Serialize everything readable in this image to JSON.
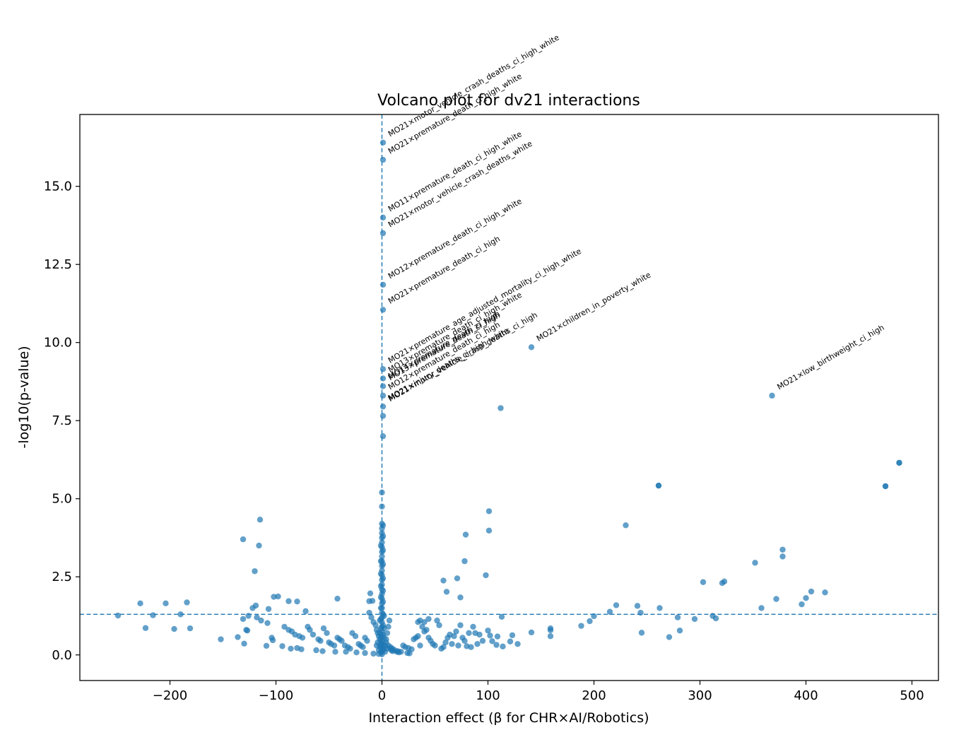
{
  "chart_data": {
    "type": "scatter",
    "title": "Volcano plot for dv21 interactions",
    "xlabel": "Interaction effect (β for CHR×AI/Robotics)",
    "ylabel": "-log10(p-value)",
    "xlim": [
      -285,
      525
    ],
    "ylim": [
      -0.82,
      17.3
    ],
    "xticks": [
      -200,
      -100,
      0,
      100,
      200,
      300,
      400,
      500
    ],
    "xtick_labels": [
      "−200",
      "−100",
      "0",
      "100",
      "200",
      "300",
      "400",
      "500"
    ],
    "yticks": [
      0,
      2.5,
      5,
      7.5,
      10,
      12.5,
      15
    ],
    "ytick_labels": [
      "0.0",
      "2.5",
      "5.0",
      "7.5",
      "10.0",
      "12.5",
      "15.0"
    ],
    "grid": false,
    "point_color": "#1f77b4",
    "ref_lines": {
      "vertical_x": 0,
      "horizontal_y": 1.3
    },
    "highlight_points": [
      [
        1,
        16.4
      ],
      [
        1,
        15.85
      ],
      [
        1,
        14.0
      ],
      [
        1,
        13.5
      ],
      [
        1,
        11.85
      ],
      [
        1,
        11.05
      ],
      [
        1,
        9.15
      ],
      [
        1,
        8.85
      ],
      [
        1,
        8.6
      ],
      [
        1,
        8.3
      ],
      [
        1,
        7.95
      ],
      [
        141,
        9.85
      ],
      [
        368,
        8.3
      ],
      [
        1,
        7.65
      ],
      [
        1,
        7.0
      ],
      [
        112,
        7.9
      ],
      [
        488,
        6.15
      ],
      [
        475,
        5.4
      ],
      [
        261,
        5.42
      ]
    ],
    "annotations": [
      {
        "text": "MO21×motor_vehicle_crash_deaths_ci_high_white",
        "x": 1,
        "y": 16.4
      },
      {
        "text": "MO21×premature_death_ci_high_white",
        "x": 1,
        "y": 15.85
      },
      {
        "text": "MO11×premature_death_ci_high_white",
        "x": 1,
        "y": 14.0
      },
      {
        "text": "MO21×motor_vehicle_crash_deaths_white",
        "x": 1,
        "y": 13.5
      },
      {
        "text": "MO12×premature_death_ci_high_white",
        "x": 1,
        "y": 11.85
      },
      {
        "text": "MO21×premature_death_ci_high",
        "x": 1,
        "y": 11.05
      },
      {
        "text": "MO21×premature_age_adjusted_mortality_ci_high_white",
        "x": 1,
        "y": 9.15
      },
      {
        "text": "MO13×premature_death_ci_high_white",
        "x": 1,
        "y": 8.85
      },
      {
        "text": "MO14×premature_death_ci_high",
        "x": 1,
        "y": 8.65
      },
      {
        "text": "MO13×premature_death_ci_high",
        "x": 1,
        "y": 8.6
      },
      {
        "text": "MO12×premature_death_ci_high",
        "x": 1,
        "y": 8.3
      },
      {
        "text": "MO21×injury_deaths_ci_high_white",
        "x": 1,
        "y": 7.95
      },
      {
        "text": "MO21×motor_vehicle_crash_deaths_ci_high",
        "x": 1,
        "y": 7.92
      },
      {
        "text": "MO21×children_in_poverty_white",
        "x": 141,
        "y": 9.85
      },
      {
        "text": "MO21×low_birthweight_ci_high",
        "x": 368,
        "y": 8.3
      }
    ],
    "other_points": [
      [
        488,
        6.15
      ],
      [
        475,
        5.4
      ],
      [
        261,
        5.42
      ],
      [
        230,
        4.15
      ],
      [
        101,
        4.6
      ],
      [
        101,
        3.98
      ],
      [
        79,
        3.85
      ],
      [
        78,
        3.0
      ],
      [
        98,
        2.55
      ],
      [
        71,
        2.45
      ],
      [
        58,
        2.38
      ],
      [
        61,
        2.02
      ],
      [
        74,
        1.84
      ],
      [
        378,
        3.37
      ],
      [
        378,
        3.15
      ],
      [
        352,
        2.95
      ],
      [
        323,
        2.35
      ],
      [
        321,
        2.3
      ],
      [
        303,
        2.33
      ],
      [
        405,
        2.03
      ],
      [
        418,
        2.0
      ],
      [
        400,
        1.82
      ],
      [
        396,
        1.62
      ],
      [
        372,
        1.79
      ],
      [
        358,
        1.5
      ],
      [
        262,
        1.5
      ],
      [
        241,
        1.57
      ],
      [
        221,
        1.59
      ],
      [
        215,
        1.38
      ],
      [
        200,
        1.24
      ],
      [
        196,
        1.08
      ],
      [
        188,
        0.93
      ],
      [
        244,
        1.35
      ],
      [
        279,
        1.2
      ],
      [
        295,
        1.15
      ],
      [
        312,
        1.25
      ],
      [
        315,
        1.17
      ],
      [
        245,
        0.71
      ],
      [
        271,
        0.57
      ],
      [
        281,
        0.78
      ],
      [
        159,
        0.85
      ],
      [
        159,
        0.79
      ],
      [
        159,
        0.6
      ],
      [
        141,
        0.72
      ],
      [
        123,
        0.63
      ],
      [
        121,
        0.43
      ],
      [
        128,
        0.35
      ],
      [
        109,
        0.59
      ],
      [
        108,
        0.32
      ],
      [
        114,
        0.27
      ],
      [
        113,
        1.22
      ],
      [
        -115,
        4.33
      ],
      [
        -131,
        3.7
      ],
      [
        -116,
        3.5
      ],
      [
        -120,
        2.68
      ],
      [
        -98,
        1.87
      ],
      [
        -102,
        1.86
      ],
      [
        -88,
        1.72
      ],
      [
        -80,
        1.71
      ],
      [
        -42,
        1.8
      ],
      [
        -11,
        1.97
      ],
      [
        -9,
        1.73
      ],
      [
        -12,
        1.72
      ],
      [
        -228,
        1.65
      ],
      [
        -204,
        1.65
      ],
      [
        -184,
        1.68
      ],
      [
        -249,
        1.26
      ],
      [
        -216,
        1.27
      ],
      [
        -190,
        1.3
      ],
      [
        -223,
        0.86
      ],
      [
        -196,
        0.83
      ],
      [
        -181,
        0.85
      ],
      [
        -152,
        0.5
      ],
      [
        -136,
        0.57
      ],
      [
        -130,
        0.36
      ],
      [
        -131,
        1.15
      ],
      [
        -126,
        1.25
      ],
      [
        -122,
        1.5
      ],
      [
        -119,
        1.58
      ],
      [
        -114,
        1.1
      ],
      [
        -107,
        1.47
      ],
      [
        -118,
        1.2
      ],
      [
        -128,
        0.8
      ],
      [
        -127,
        0.78
      ],
      [
        -108,
        1.02
      ],
      [
        -104,
        0.55
      ],
      [
        -103,
        0.47
      ],
      [
        -109,
        0.29
      ],
      [
        -92,
        0.9
      ],
      [
        -88,
        0.8
      ],
      [
        -85,
        0.75
      ],
      [
        -82,
        0.65
      ],
      [
        -78,
        0.6
      ],
      [
        -75,
        0.55
      ],
      [
        -72,
        1.4
      ],
      [
        -70,
        0.9
      ],
      [
        -68,
        0.8
      ],
      [
        -65,
        0.65
      ],
      [
        -60,
        0.5
      ],
      [
        -58,
        0.45
      ],
      [
        -55,
        0.85
      ],
      [
        -52,
        0.7
      ],
      [
        -50,
        0.4
      ],
      [
        -48,
        0.35
      ],
      [
        -45,
        0.3
      ],
      [
        -42,
        0.55
      ],
      [
        -40,
        0.5
      ],
      [
        -38,
        0.45
      ],
      [
        -35,
        0.3
      ],
      [
        -32,
        0.25
      ],
      [
        -30,
        0.2
      ],
      [
        -28,
        0.7
      ],
      [
        -25,
        0.6
      ],
      [
        -22,
        0.35
      ],
      [
        -20,
        0.3
      ],
      [
        -18,
        0.25
      ],
      [
        -16,
        0.55
      ],
      [
        -14,
        0.45
      ],
      [
        -12,
        1.35
      ],
      [
        -10,
        1.2
      ],
      [
        -8,
        1.05
      ],
      [
        -6,
        0.95
      ],
      [
        -5,
        0.8
      ],
      [
        -4,
        0.7
      ],
      [
        -3,
        0.6
      ],
      [
        -2,
        0.5
      ],
      [
        -1,
        0.4
      ],
      [
        -94,
        0.28
      ],
      [
        -86,
        0.2
      ],
      [
        -80,
        0.22
      ],
      [
        -76,
        0.18
      ],
      [
        -62,
        0.15
      ],
      [
        -56,
        0.12
      ],
      [
        -44,
        0.1
      ],
      [
        -34,
        0.1
      ],
      [
        -24,
        0.08
      ],
      [
        -16,
        0.06
      ],
      [
        -8,
        0.04
      ],
      [
        -3,
        0.03
      ],
      [
        4,
        0.4
      ],
      [
        6,
        0.3
      ],
      [
        8,
        0.25
      ],
      [
        10,
        0.2
      ],
      [
        12,
        0.15
      ],
      [
        15,
        0.12
      ],
      [
        18,
        0.1
      ],
      [
        20,
        0.3
      ],
      [
        22,
        0.25
      ],
      [
        25,
        0.22
      ],
      [
        28,
        0.18
      ],
      [
        30,
        0.5
      ],
      [
        32,
        0.55
      ],
      [
        34,
        0.6
      ],
      [
        36,
        0.3
      ],
      [
        38,
        0.9
      ],
      [
        40,
        0.75
      ],
      [
        42,
        0.8
      ],
      [
        44,
        0.55
      ],
      [
        46,
        0.45
      ],
      [
        48,
        0.35
      ],
      [
        50,
        0.3
      ],
      [
        52,
        1.1
      ],
      [
        54,
        0.95
      ],
      [
        56,
        0.2
      ],
      [
        58,
        0.25
      ],
      [
        60,
        0.4
      ],
      [
        62,
        0.55
      ],
      [
        64,
        0.65
      ],
      [
        66,
        0.35
      ],
      [
        68,
        0.6
      ],
      [
        70,
        0.75
      ],
      [
        72,
        0.3
      ],
      [
        74,
        0.95
      ],
      [
        76,
        0.55
      ],
      [
        78,
        0.45
      ],
      [
        80,
        0.28
      ],
      [
        82,
        0.7
      ],
      [
        84,
        0.25
      ],
      [
        86,
        0.9
      ],
      [
        88,
        0.7
      ],
      [
        90,
        0.35
      ],
      [
        92,
        0.65
      ],
      [
        95,
        0.45
      ],
      [
        100,
        0.78
      ],
      [
        102,
        0.62
      ],
      [
        104,
        0.44
      ],
      [
        34,
        1.05
      ],
      [
        44,
        1.15
      ],
      [
        40,
        1.05
      ],
      [
        36,
        1.1
      ],
      [
        2,
        0.2
      ],
      [
        3,
        0.3
      ],
      [
        4,
        0.5
      ],
      [
        5,
        0.7
      ],
      [
        6,
        0.9
      ],
      [
        7,
        1.1
      ],
      [
        8,
        0.2
      ],
      [
        9,
        0.15
      ],
      [
        10,
        0.12
      ],
      [
        14,
        0.1
      ],
      [
        16,
        0.08
      ],
      [
        24,
        0.06
      ],
      [
        26,
        0.05
      ],
      [
        0,
        0.02
      ],
      [
        0,
        0.1
      ],
      [
        0,
        0.2
      ],
      [
        0,
        0.3
      ],
      [
        0,
        0.45
      ],
      [
        0,
        0.6
      ],
      [
        0,
        0.75
      ],
      [
        0,
        0.9
      ],
      [
        0,
        1.05
      ],
      [
        0,
        1.2
      ],
      [
        0,
        1.35
      ],
      [
        0,
        1.5
      ],
      [
        0,
        1.65
      ],
      [
        0,
        1.8
      ],
      [
        0,
        1.95
      ],
      [
        0,
        2.1
      ],
      [
        0,
        2.25
      ],
      [
        0,
        2.4
      ],
      [
        0,
        2.55
      ],
      [
        0,
        2.7
      ],
      [
        0,
        2.85
      ],
      [
        0,
        3.0
      ],
      [
        0,
        3.15
      ],
      [
        0,
        3.3
      ],
      [
        0,
        3.45
      ],
      [
        0,
        3.6
      ],
      [
        0,
        3.75
      ],
      [
        0,
        3.9
      ],
      [
        0,
        4.05
      ],
      [
        0,
        4.2
      ],
      [
        0,
        4.75
      ],
      [
        0,
        5.2
      ],
      [
        -1,
        0.1
      ],
      [
        -1,
        0.3
      ],
      [
        -1,
        0.55
      ],
      [
        -1,
        0.85
      ],
      [
        -1,
        1.15
      ],
      [
        -1,
        1.5
      ],
      [
        -1,
        1.85
      ],
      [
        -1,
        2.2
      ],
      [
        -1,
        2.6
      ],
      [
        -1,
        3.0
      ],
      [
        -1,
        3.5
      ],
      [
        1,
        0.15
      ],
      [
        1,
        0.35
      ],
      [
        1,
        0.65
      ],
      [
        1,
        0.95
      ],
      [
        1,
        1.3
      ],
      [
        1,
        1.7
      ],
      [
        1,
        2.05
      ],
      [
        1,
        2.45
      ],
      [
        1,
        2.9
      ],
      [
        1,
        3.35
      ],
      [
        1,
        3.8
      ],
      [
        1,
        4.15
      ],
      [
        -2,
        0.25
      ],
      [
        -2,
        0.7
      ],
      [
        -2,
        1.1
      ],
      [
        2,
        0.55
      ],
      [
        2,
        0.85
      ],
      [
        2,
        1.25
      ],
      [
        -3,
        0.15
      ],
      [
        3,
        0.1
      ],
      [
        -4,
        0.4
      ],
      [
        -5,
        0.3
      ],
      [
        5,
        0.2
      ]
    ]
  }
}
